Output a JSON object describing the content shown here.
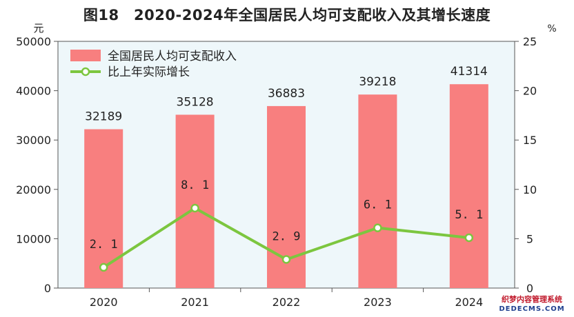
{
  "title": "图18　2020-2024年全国居民人均可支配收入及其增长速度",
  "chart_data": {
    "type": "bar",
    "categories": [
      "2020",
      "2021",
      "2022",
      "2023",
      "2024"
    ],
    "series": [
      {
        "name": "全国居民人均可支配收入",
        "type": "bar",
        "axis": "left",
        "values": [
          32189,
          35128,
          36883,
          39218,
          41314
        ],
        "color": "#f87f7f"
      },
      {
        "name": "比上年实际增长",
        "type": "line",
        "axis": "right",
        "values": [
          2.1,
          8.1,
          2.9,
          6.1,
          5.1
        ],
        "color": "#7cc63f"
      }
    ],
    "y_left": {
      "unit": "元",
      "min": 0,
      "max": 50000,
      "ticks": [
        0,
        10000,
        20000,
        30000,
        40000,
        50000
      ]
    },
    "y_right": {
      "unit": "%",
      "min": 0,
      "max": 25,
      "ticks": [
        0,
        5,
        10,
        15,
        20,
        25
      ]
    },
    "plot_background": "#eef7fa",
    "grid": false,
    "legend_position": "top-left"
  },
  "watermark": {
    "line1": "织梦内容管理系统",
    "line2": "DEDECMS.COM"
  }
}
